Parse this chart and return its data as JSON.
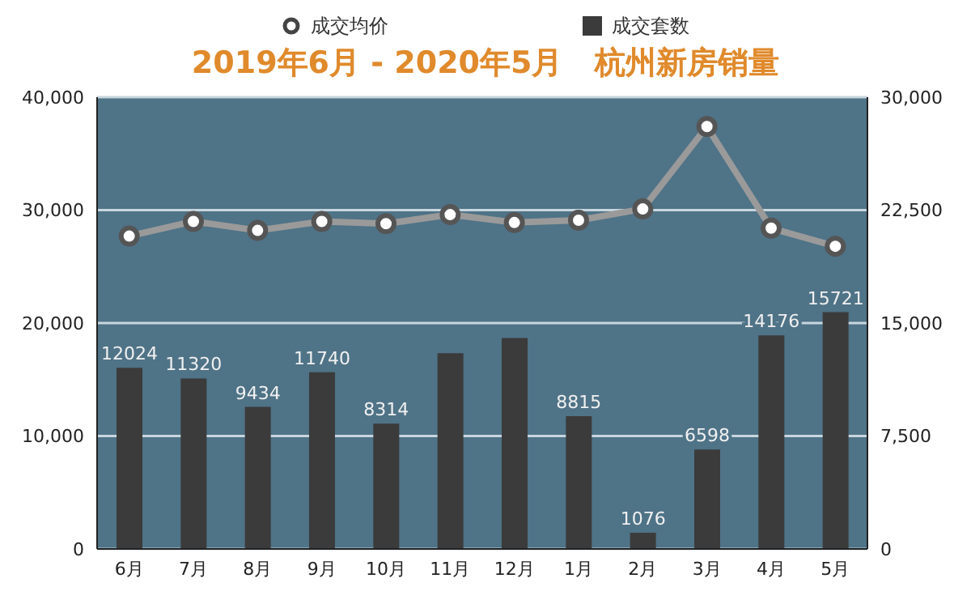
{
  "chart_data": {
    "type": "bar",
    "title": "2019年6月 - 2020年5月   杭州新房销量",
    "categories": [
      "6月",
      "7月",
      "8月",
      "9月",
      "10月",
      "11月",
      "12月",
      "1月",
      "2月",
      "3月",
      "4月",
      "5月"
    ],
    "series": [
      {
        "name": "成交均价",
        "type": "line",
        "color": "#9a9a9a",
        "marker": "circle",
        "values": [
          27700,
          29000,
          28200,
          29000,
          28800,
          29600,
          28900,
          29100,
          30100,
          37400,
          28400,
          26800
        ]
      },
      {
        "name": "成交套数",
        "axis": "y2",
        "color": "#3b3b3b",
        "values": [
          12024,
          11320,
          9434,
          11740,
          8314,
          13000,
          14000,
          8815,
          1076,
          6598,
          14176,
          15721
        ],
        "value_labels": [
          "12024",
          "11320",
          "9434",
          "11740",
          "8314",
          null,
          null,
          "8815",
          "1076",
          "6598",
          "14176",
          "15721"
        ]
      }
    ],
    "ylim": [
      0,
      40000
    ],
    "yticks": [
      {
        "value": 0,
        "label": "0"
      },
      {
        "value": 10000,
        "label": "10,000"
      },
      {
        "value": 20000,
        "label": "20,000"
      },
      {
        "value": 30000,
        "label": "30,000"
      },
      {
        "value": 40000,
        "label": "40,000"
      }
    ],
    "y2lim": [
      0,
      30000
    ],
    "y2ticks": [
      {
        "value": 0,
        "label": "0"
      },
      {
        "value": 7500,
        "label": "7,500"
      },
      {
        "value": 15000,
        "label": "15,000"
      },
      {
        "value": 22500,
        "label": "22,500"
      },
      {
        "value": 30000,
        "label": "30,000"
      }
    ],
    "grid": "y",
    "legend": "top"
  }
}
